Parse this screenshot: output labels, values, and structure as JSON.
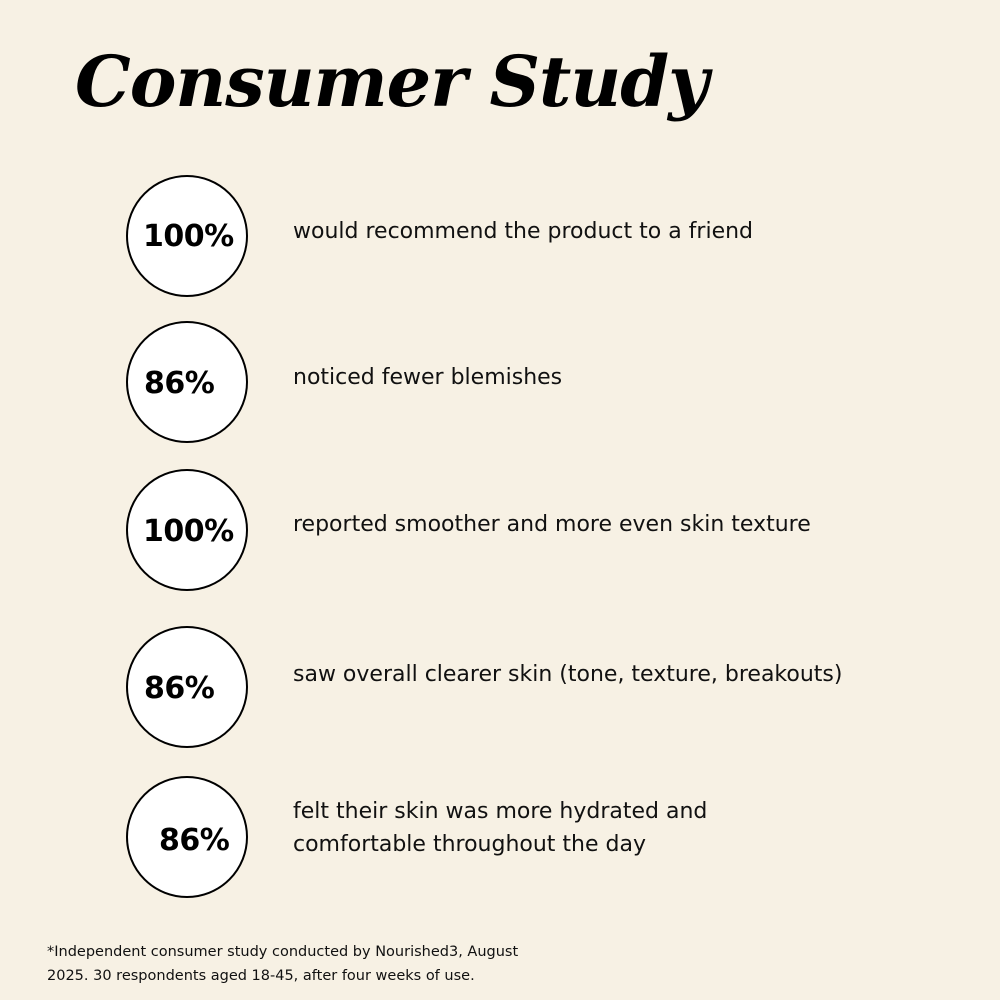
{
  "title": "Consumer Study",
  "stats": [
    {
      "value": "100%",
      "text": "would recommend the product to a friend"
    },
    {
      "value": "86%",
      "text": "noticed fewer blemishes"
    },
    {
      "value": "100%",
      "text": "reported smoother and more even skin texture"
    },
    {
      "value": "86%",
      "text": "saw overall clearer skin (tone, texture, breakouts)"
    },
    {
      "value": "86%",
      "text_line1": "felt their skin was more hydrated and",
      "text_line2": "comfortable throughout the day"
    }
  ],
  "footnote": {
    "line1": "*Independent consumer study conducted by Nourished3, August",
    "line2": "2025. 30 respondents aged 18-45, after four weeks of use."
  },
  "colors": {
    "background": "#f7f1e4",
    "circle_fill": "#ffffff",
    "circle_stroke": "#000000"
  }
}
